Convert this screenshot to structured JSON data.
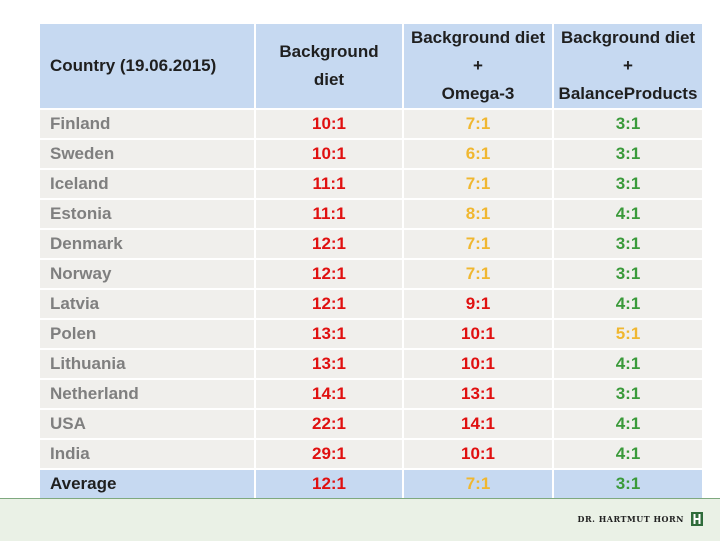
{
  "header": {
    "country": "Country (19.06.2015)",
    "col1": [
      "Background",
      "diet"
    ],
    "col2": [
      "Background diet",
      "+",
      "Omega-3"
    ],
    "col3": [
      "Background diet",
      "+",
      "BalanceProducts"
    ]
  },
  "rows": [
    {
      "country": "Finland",
      "bg": "10:1",
      "omega": "7:1",
      "balance": "3:1"
    },
    {
      "country": "Sweden",
      "bg": "10:1",
      "omega": "6:1",
      "balance": "3:1"
    },
    {
      "country": "Iceland",
      "bg": "11:1",
      "omega": "7:1",
      "balance": "3:1"
    },
    {
      "country": "Estonia",
      "bg": "11:1",
      "omega": "8:1",
      "balance": "4:1"
    },
    {
      "country": "Denmark",
      "bg": "12:1",
      "omega": "7:1",
      "balance": "3:1"
    },
    {
      "country": "Norway",
      "bg": "12:1",
      "omega": "7:1",
      "balance": "3:1"
    },
    {
      "country": "Latvia",
      "bg": "12:1",
      "omega": "9:1",
      "balance": "4:1"
    },
    {
      "country": "Polen",
      "bg": "13:1",
      "omega": "10:1",
      "balance": "5:1"
    },
    {
      "country": "Lithuania",
      "bg": "13:1",
      "omega": "10:1",
      "balance": "4:1"
    },
    {
      "country": "Netherland",
      "bg": "14:1",
      "omega": "13:1",
      "balance": "3:1"
    },
    {
      "country": "USA",
      "bg": "22:1",
      "omega": "14:1",
      "balance": "4:1"
    },
    {
      "country": "India",
      "bg": "29:1",
      "omega": "10:1",
      "balance": "4:1"
    }
  ],
  "average": {
    "country": "Average",
    "bg": "12:1",
    "omega": "7:1",
    "balance": "3:1"
  },
  "footer": {
    "logo_text": "DR. HARTMUT HORN"
  },
  "colors": {
    "red": "#e01010",
    "yellow": "#f0b730",
    "green": "#3a9a3a",
    "header_bg": "#c6d9f1",
    "row_bg": "#f0efec"
  }
}
